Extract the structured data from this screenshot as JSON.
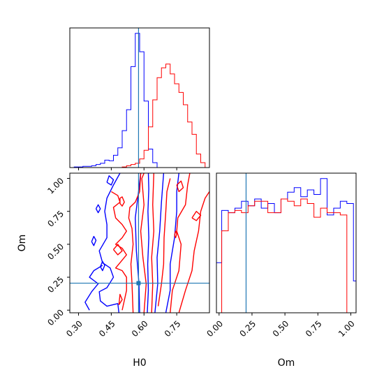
{
  "colors": {
    "series_a": "#0000ff",
    "series_b": "#ff0000",
    "truth": "#1f77b4",
    "axes": "#000000"
  },
  "chart_data": {
    "type": "corner",
    "parameters": [
      "H0",
      "Om"
    ],
    "truth": {
      "H0": 0.575,
      "Om": 0.205
    },
    "grid": false,
    "panels": {
      "H0_hist": {
        "type": "step-histogram",
        "xlim": [
          0.26,
          0.9
        ],
        "bin_edges": [
          0.26,
          0.28,
          0.3,
          0.32,
          0.34,
          0.36,
          0.38,
          0.4,
          0.42,
          0.44,
          0.46,
          0.48,
          0.5,
          0.52,
          0.54,
          0.56,
          0.58,
          0.6,
          0.62,
          0.64,
          0.66,
          0.68,
          0.7,
          0.72,
          0.74,
          0.76,
          0.78,
          0.8,
          0.82,
          0.84,
          0.86,
          0.88,
          0.9
        ],
        "series": [
          {
            "color": "#0000ff",
            "counts": [
              0,
              0.5,
              0.5,
              1,
              1,
              1.5,
              2.5,
              3.5,
              6,
              5.5,
              10,
              16,
              30,
              47,
              82,
              109,
              94,
              54,
              15,
              4,
              0,
              0,
              0,
              0,
              0,
              0,
              0,
              0,
              0,
              0,
              0,
              0
            ]
          },
          {
            "color": "#ff0000",
            "counts": [
              0,
              0,
              0,
              0,
              0,
              0,
              0,
              0,
              0,
              0,
              0,
              0,
              0.5,
              1.5,
              2.5,
              3.5,
              7,
              14,
              33,
              55,
              73,
              81,
              84,
              76,
              68,
              61,
              51,
              37,
              27,
              11,
              4,
              0
            ]
          }
        ]
      },
      "Om_hist": {
        "type": "step-histogram",
        "xlim": [
          -0.02,
          1.04
        ],
        "bin_edges": [
          -0.02,
          0.02,
          0.07,
          0.12,
          0.17,
          0.22,
          0.27,
          0.32,
          0.37,
          0.42,
          0.47,
          0.52,
          0.57,
          0.62,
          0.67,
          0.72,
          0.77,
          0.82,
          0.87,
          0.92,
          0.97,
          1.02,
          1.04
        ],
        "series": [
          {
            "color": "#0000ff",
            "counts": [
              22,
              45,
              44,
              46,
              49,
              47,
              50,
              46,
              48,
              44,
              50,
              53,
              55,
              51,
              54,
              52,
              59,
              43,
              46,
              49,
              48,
              14
            ]
          },
          {
            "color": "#ff0000",
            "counts": [
              0,
              36,
              44,
              45,
              44,
              47,
              49,
              49,
              44,
              44,
              50,
              49,
              47,
              50,
              48,
              42,
              46,
              44,
              44,
              43,
              0,
              0
            ]
          }
        ]
      },
      "H0_Om_contour": {
        "type": "contour",
        "xlim": [
          0.26,
          0.9
        ],
        "ylim": [
          -0.02,
          1.04
        ],
        "series": [
          {
            "color": "#0000ff",
            "contours": [
              [
                [
                  0.615,
                  -0.02
                ],
                [
                  0.62,
                  0.15
                ],
                [
                  0.617,
                  0.35
                ],
                [
                  0.622,
                  0.55
                ],
                [
                  0.618,
                  0.75
                ],
                [
                  0.622,
                  0.92
                ],
                [
                  0.62,
                  1.04
                ]
              ],
              [
                [
                  0.58,
                  -0.02
                ],
                [
                  0.577,
                  0.2
                ],
                [
                  0.565,
                  0.45
                ],
                [
                  0.56,
                  0.7
                ],
                [
                  0.575,
                  0.9
                ],
                [
                  0.585,
                  1.04
                ]
              ],
              [
                [
                  0.65,
                  -0.02
                ],
                [
                  0.663,
                  0.2
                ],
                [
                  0.66,
                  0.4
                ],
                [
                  0.672,
                  0.6
                ],
                [
                  0.68,
                  0.82
                ],
                [
                  0.69,
                  1.04
                ]
              ],
              [
                [
                  0.485,
                  -0.02
                ],
                [
                  0.48,
                  0.05
                ],
                [
                  0.43,
                  0.03
                ],
                [
                  0.4,
                  0.07
                ],
                [
                  0.395,
                  0.14
                ],
                [
                  0.43,
                  0.17
                ],
                [
                  0.46,
                  0.25
                ],
                [
                  0.445,
                  0.32
                ],
                [
                  0.41,
                  0.36
                ],
                [
                  0.395,
                  0.45
                ],
                [
                  0.43,
                  0.55
                ],
                [
                  0.43,
                  0.65
                ],
                [
                  0.42,
                  0.75
                ],
                [
                  0.43,
                  0.85
                ],
                [
                  0.46,
                  0.95
                ],
                [
                  0.49,
                  1.04
                ]
              ],
              [
                [
                  0.7,
                  -0.02
                ],
                [
                  0.72,
                  0.15
                ],
                [
                  0.72,
                  0.35
                ],
                [
                  0.74,
                  0.55
                ],
                [
                  0.75,
                  0.75
                ],
                [
                  0.75,
                  0.9
                ],
                [
                  0.76,
                  1.04
                ]
              ],
              [
                [
                  0.35,
                  0.0
                ],
                [
                  0.33,
                  0.06
                ],
                [
                  0.36,
                  0.14
                ],
                [
                  0.39,
                  0.2
                ],
                [
                  0.35,
                  0.25
                ],
                [
                  0.37,
                  0.3
                ],
                [
                  0.41,
                  0.34
                ]
              ],
              [
                [
                  0.38,
                  0.77
                ],
                [
                  0.39,
                  0.74
                ],
                [
                  0.4,
                  0.77
                ],
                [
                  0.39,
                  0.8
                ],
                [
                  0.38,
                  0.77
                ]
              ],
              [
                [
                  0.36,
                  0.52
                ],
                [
                  0.37,
                  0.49
                ],
                [
                  0.38,
                  0.53
                ],
                [
                  0.37,
                  0.56
                ],
                [
                  0.36,
                  0.52
                ]
              ],
              [
                [
                  0.4,
                  0.33
                ],
                [
                  0.41,
                  0.3
                ],
                [
                  0.42,
                  0.34
                ],
                [
                  0.41,
                  0.37
                ],
                [
                  0.4,
                  0.33
                ]
              ],
              [
                [
                  0.43,
                  0.97
                ],
                [
                  0.45,
                  0.95
                ],
                [
                  0.46,
                  0.99
                ],
                [
                  0.44,
                  1.02
                ],
                [
                  0.43,
                  0.97
                ]
              ]
            ]
          },
          {
            "color": "#ff0000",
            "contours": [
              [
                [
                  0.635,
                  -0.02
                ],
                [
                  0.64,
                  0.2
                ],
                [
                  0.635,
                  0.4
                ],
                [
                  0.645,
                  0.6
                ],
                [
                  0.64,
                  0.8
                ],
                [
                  0.645,
                  1.04
                ]
              ],
              [
                [
                  0.6,
                  -0.02
                ],
                [
                  0.61,
                  0.2
                ],
                [
                  0.595,
                  0.4
                ],
                [
                  0.585,
                  0.6
                ],
                [
                  0.6,
                  0.8
                ],
                [
                  0.59,
                  1.0
                ],
                [
                  0.6,
                  1.04
                ]
              ],
              [
                [
                  0.665,
                  0.03
                ],
                [
                  0.68,
                  0.2
                ],
                [
                  0.69,
                  0.35
                ],
                [
                  0.692,
                  0.55
                ],
                [
                  0.7,
                  0.75
                ],
                [
                  0.705,
                  0.9
                ],
                [
                  0.72,
                  1.0
                ]
              ],
              [
                [
                  0.55,
                  -0.02
                ],
                [
                  0.545,
                  0.2
                ],
                [
                  0.54,
                  0.35
                ],
                [
                  0.55,
                  0.5
                ],
                [
                  0.545,
                  0.62
                ],
                [
                  0.53,
                  0.7
                ],
                [
                  0.535,
                  0.78
                ],
                [
                  0.56,
                  0.82
                ],
                [
                  0.58,
                  0.9
                ],
                [
                  0.585,
                  1.04
                ]
              ],
              [
                [
                  0.72,
                  -0.02
                ],
                [
                  0.73,
                  0.15
                ],
                [
                  0.76,
                  0.3
                ],
                [
                  0.77,
                  0.5
                ],
                [
                  0.75,
                  0.6
                ],
                [
                  0.755,
                  0.7
                ],
                [
                  0.79,
                  0.8
                ],
                [
                  0.8,
                  0.95
                ],
                [
                  0.81,
                  1.04
                ]
              ],
              [
                [
                  0.5,
                  0.0
                ],
                [
                  0.52,
                  0.15
                ],
                [
                  0.52,
                  0.25
                ],
                [
                  0.5,
                  0.3
                ],
                [
                  0.47,
                  0.32
                ],
                [
                  0.5,
                  0.38
                ],
                [
                  0.52,
                  0.42
                ],
                [
                  0.5,
                  0.47
                ],
                [
                  0.47,
                  0.5
                ],
                [
                  0.5,
                  0.55
                ],
                [
                  0.52,
                  0.6
                ],
                [
                  0.5,
                  0.65
                ],
                [
                  0.47,
                  0.7
                ],
                [
                  0.46,
                  0.78
                ],
                [
                  0.49,
                  0.82
                ],
                [
                  0.48,
                  0.87
                ],
                [
                  0.45,
                  0.9
                ]
              ],
              [
                [
                  0.76,
                  -0.02
                ],
                [
                  0.79,
                  0.15
                ],
                [
                  0.82,
                  0.3
                ],
                [
                  0.83,
                  0.45
                ],
                [
                  0.85,
                  0.6
                ],
                [
                  0.86,
                  0.75
                ],
                [
                  0.88,
                  0.85
                ],
                [
                  0.9,
                  0.9
                ]
              ],
              [
                [
                  0.75,
                  0.95
                ],
                [
                  0.76,
                  0.9
                ],
                [
                  0.78,
                  0.93
                ],
                [
                  0.77,
                  0.98
                ],
                [
                  0.75,
                  0.95
                ]
              ],
              [
                [
                  0.49,
                  0.85
                ],
                [
                  0.49,
                  0.81
                ],
                [
                  0.5,
                  0.79
                ],
                [
                  0.51,
                  0.82
                ],
                [
                  0.5,
                  0.86
                ],
                [
                  0.49,
                  0.85
                ]
              ],
              [
                [
                  0.74,
                  0.57
                ],
                [
                  0.745,
                  0.55
                ],
                [
                  0.75,
                  0.58
                ],
                [
                  0.745,
                  0.6
                ],
                [
                  0.74,
                  0.57
                ]
              ],
              [
                [
                  0.485,
                  0.04
                ],
                [
                  0.5,
                  0.08
                ],
                [
                  0.49,
                  0.12
                ],
                [
                  0.485,
                  0.04
                ]
              ],
              [
                [
                  0.46,
                  0.46
                ],
                [
                  0.48,
                  0.42
                ],
                [
                  0.5,
                  0.45
                ],
                [
                  0.48,
                  0.5
                ],
                [
                  0.46,
                  0.46
                ]
              ],
              [
                [
                  0.82,
                  0.7
                ],
                [
                  0.84,
                  0.68
                ],
                [
                  0.86,
                  0.72
                ],
                [
                  0.84,
                  0.75
                ],
                [
                  0.82,
                  0.7
                ]
              ]
            ]
          }
        ]
      }
    },
    "axes": {
      "H0": {
        "label": "H0",
        "ticks": [
          0.3,
          0.45,
          0.6,
          0.75
        ],
        "tick_labels": [
          "0.30",
          "0.45",
          "0.60",
          "0.75"
        ]
      },
      "Om_y": {
        "label": "Om",
        "ticks": [
          0.0,
          0.25,
          0.5,
          0.75,
          1.0
        ],
        "tick_labels": [
          "0.00",
          "0.25",
          "0.50",
          "0.75",
          "1.00"
        ]
      },
      "Om_x": {
        "label": "Om",
        "ticks": [
          0.0,
          0.25,
          0.5,
          0.75,
          1.0
        ],
        "tick_labels": [
          "0.00",
          "0.25",
          "0.50",
          "0.75",
          "1.00"
        ]
      }
    }
  }
}
